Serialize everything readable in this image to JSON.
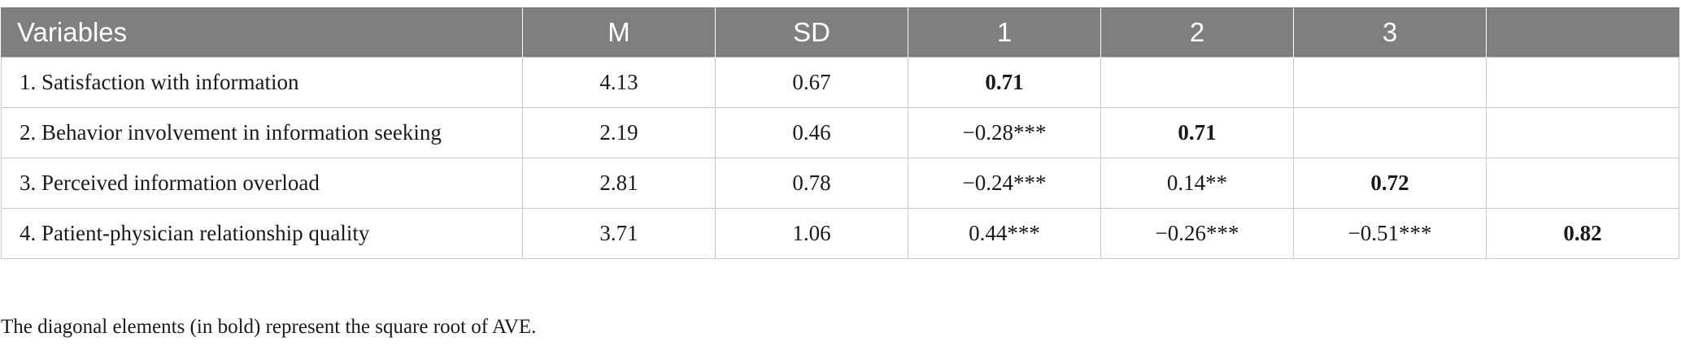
{
  "table": {
    "headers": [
      "Variables",
      "M",
      "SD",
      "1",
      "2",
      "3",
      ""
    ],
    "rows": [
      {
        "variable": "1.  Satisfaction with information",
        "m": "4.13",
        "sd": "0.67",
        "c1": "0.71",
        "c2": "",
        "c3": "",
        "c4": ""
      },
      {
        "variable": "2.  Behavior involvement in information seeking",
        "m": "2.19",
        "sd": "0.46",
        "c1": "−0.28***",
        "c2": "0.71",
        "c3": "",
        "c4": ""
      },
      {
        "variable": "3.  Perceived information overload",
        "m": "2.81",
        "sd": "0.78",
        "c1": "−0.24***",
        "c2": "0.14**",
        "c3": "0.72",
        "c4": ""
      },
      {
        "variable": "4.  Patient-physician relationship quality",
        "m": "3.71",
        "sd": "1.06",
        "c1": "0.44***",
        "c2": "−0.26***",
        "c3": "−0.51***",
        "c4": "0.82"
      }
    ]
  },
  "note": "The diagonal elements (in bold) represent the square root of AVE.",
  "colors": {
    "header_background": "#7f7f7f",
    "header_text": "#ffffff",
    "grid_line": "#c9c9c9"
  }
}
